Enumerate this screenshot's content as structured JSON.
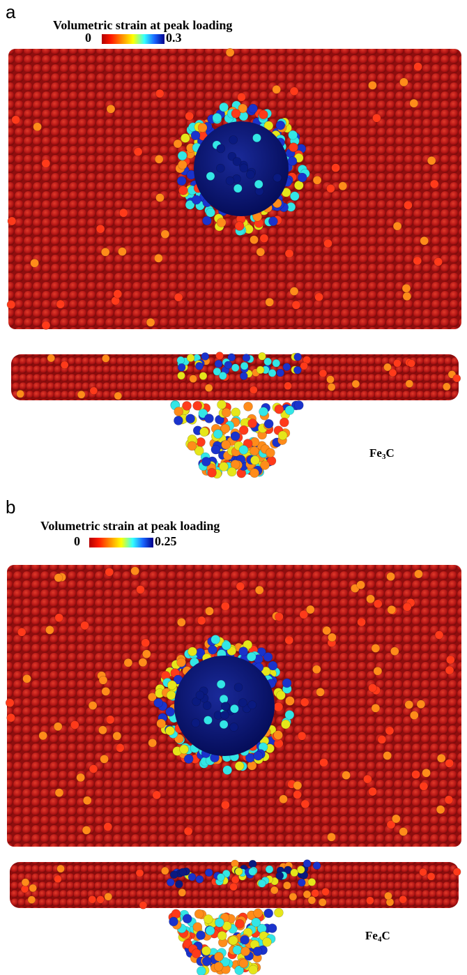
{
  "panel_a": {
    "letter": "a",
    "colorbar_title": "Volumetric strain at peak loading",
    "colorbar_min": "0",
    "colorbar_max": "0.3",
    "material_base": "Fe",
    "material_sub": "3",
    "material_tail": "C"
  },
  "panel_b": {
    "letter": "b",
    "colorbar_title": "Volumetric strain at peak loading",
    "colorbar_min": "0",
    "colorbar_max": "0.25",
    "material_base": "Fe",
    "material_sub": "4",
    "material_tail": "C"
  },
  "colors": {
    "matrix": "#b31515",
    "matrix_dark": "#7a0a0a",
    "hot": "#ff3a1a",
    "orange": "#ff8c1a",
    "yellow": "#e6e61a",
    "cyan": "#33e6e6",
    "blue": "#1a33cc",
    "core": "#0a1a80"
  }
}
